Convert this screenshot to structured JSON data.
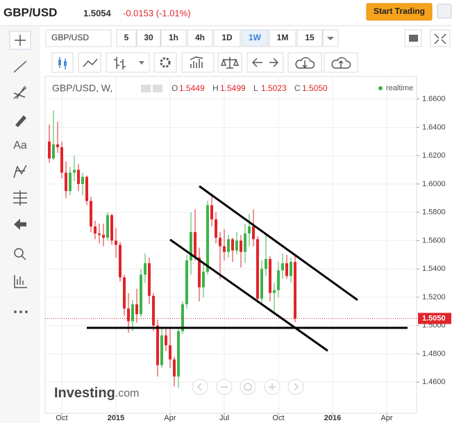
{
  "header": {
    "symbol": "GBP/USD",
    "price": "1.5054",
    "change": "-0.0153 (-1.01%)",
    "button": "Start Trading"
  },
  "toolbar": {
    "symbol_input": "GBP/USD",
    "intervals": [
      "5",
      "30",
      "1h",
      "4h",
      "1D",
      "1W",
      "1M",
      "15"
    ],
    "active_interval": "1W",
    "text_tool": "Aa"
  },
  "chart_data": {
    "type": "candlestick",
    "title": "GBP/USD, W,",
    "ohlc_legend": [
      {
        "key": "O",
        "value": "1.5449"
      },
      {
        "key": "H",
        "value": "1.5499"
      },
      {
        "key": "L",
        "value": "1.5023"
      },
      {
        "key": "C",
        "value": "1.5050"
      }
    ],
    "status": "realtime",
    "watermark": [
      "Investing",
      ".com"
    ],
    "up_color": "#3cb44a",
    "down_color": "#e0252b",
    "grid": true,
    "x": [
      1,
      2,
      3,
      4,
      5,
      6,
      7,
      8,
      9,
      10,
      11,
      12,
      13,
      14,
      15,
      16,
      17,
      18,
      19,
      20,
      21,
      22,
      23,
      24,
      25,
      26,
      27,
      28,
      29,
      30,
      31,
      32,
      33,
      34,
      35,
      36,
      37,
      38,
      39,
      40,
      41,
      42,
      43,
      44,
      45,
      46,
      47,
      48,
      49,
      50,
      51,
      52,
      53,
      54,
      55,
      56,
      57,
      58,
      59,
      60
    ],
    "open": [
      1.63,
      1.618,
      1.628,
      1.626,
      1.608,
      1.595,
      1.608,
      1.61,
      1.6,
      1.605,
      1.588,
      1.57,
      1.565,
      1.564,
      1.562,
      1.578,
      1.56,
      1.557,
      1.534,
      1.512,
      1.503,
      1.515,
      1.508,
      1.536,
      1.544,
      1.521,
      1.5,
      1.472,
      1.493,
      1.486,
      1.476,
      1.464,
      1.496,
      1.515,
      1.546,
      1.566,
      1.548,
      1.527,
      1.538,
      1.585,
      1.575,
      1.562,
      1.556,
      1.552,
      1.561,
      1.553,
      1.56,
      1.552,
      1.565,
      1.57,
      1.561,
      1.519,
      1.54,
      1.547,
      1.523,
      1.525,
      1.539,
      1.544,
      1.535,
      1.5449
    ],
    "high": [
      1.642,
      1.652,
      1.644,
      1.63,
      1.616,
      1.612,
      1.62,
      1.614,
      1.608,
      1.606,
      1.591,
      1.574,
      1.572,
      1.572,
      1.58,
      1.579,
      1.569,
      1.559,
      1.536,
      1.523,
      1.518,
      1.526,
      1.54,
      1.551,
      1.548,
      1.523,
      1.504,
      1.498,
      1.499,
      1.499,
      1.478,
      1.498,
      1.517,
      1.55,
      1.58,
      1.582,
      1.555,
      1.544,
      1.588,
      1.593,
      1.58,
      1.566,
      1.568,
      1.564,
      1.562,
      1.566,
      1.564,
      1.572,
      1.579,
      1.582,
      1.563,
      1.546,
      1.565,
      1.549,
      1.53,
      1.545,
      1.551,
      1.55,
      1.548,
      1.5499
    ],
    "low": [
      1.615,
      1.617,
      1.622,
      1.604,
      1.59,
      1.592,
      1.602,
      1.595,
      1.592,
      1.585,
      1.566,
      1.561,
      1.558,
      1.556,
      1.56,
      1.557,
      1.548,
      1.531,
      1.507,
      1.495,
      1.496,
      1.502,
      1.506,
      1.53,
      1.515,
      1.496,
      1.464,
      1.47,
      1.482,
      1.47,
      1.457,
      1.456,
      1.494,
      1.512,
      1.536,
      1.546,
      1.517,
      1.52,
      1.536,
      1.57,
      1.558,
      1.533,
      1.546,
      1.548,
      1.545,
      1.55,
      1.541,
      1.544,
      1.556,
      1.556,
      1.516,
      1.514,
      1.535,
      1.517,
      1.51,
      1.52,
      1.533,
      1.533,
      1.53,
      1.5023
    ],
    "close": [
      1.618,
      1.628,
      1.626,
      1.608,
      1.595,
      1.608,
      1.61,
      1.6,
      1.605,
      1.588,
      1.57,
      1.565,
      1.564,
      1.562,
      1.578,
      1.56,
      1.557,
      1.534,
      1.512,
      1.503,
      1.515,
      1.508,
      1.536,
      1.544,
      1.521,
      1.5,
      1.472,
      1.493,
      1.486,
      1.476,
      1.464,
      1.496,
      1.515,
      1.546,
      1.566,
      1.548,
      1.527,
      1.538,
      1.585,
      1.575,
      1.562,
      1.556,
      1.552,
      1.561,
      1.553,
      1.56,
      1.552,
      1.565,
      1.57,
      1.561,
      1.519,
      1.54,
      1.547,
      1.523,
      1.525,
      1.539,
      1.544,
      1.535,
      1.545,
      1.505
    ],
    "price_line": {
      "value": 1.505,
      "label": "1.5050"
    },
    "xlim": [
      0,
      89.17
    ],
    "xticks": [
      {
        "value": 4,
        "label": "Oct"
      },
      {
        "value": 17,
        "label": "2015"
      },
      {
        "value": 30,
        "label": "Apr"
      },
      {
        "value": 43,
        "label": "Jul"
      },
      {
        "value": 56,
        "label": "Oct"
      },
      {
        "value": 69,
        "label": "2016"
      },
      {
        "value": 82,
        "label": "Apr"
      }
    ],
    "ylim": [
      1.438,
      1.676
    ],
    "yticks": [
      {
        "value": 1.66,
        "label": "1.6600"
      },
      {
        "value": 1.64,
        "label": "1.6400"
      },
      {
        "value": 1.62,
        "label": "1.6200"
      },
      {
        "value": 1.6,
        "label": "1.6000"
      },
      {
        "value": 1.58,
        "label": "1.5800"
      },
      {
        "value": 1.56,
        "label": "1.5600"
      },
      {
        "value": 1.54,
        "label": "1.5400"
      },
      {
        "value": 1.52,
        "label": "1.5200"
      },
      {
        "value": 1.5,
        "label": "1.5000"
      },
      {
        "value": 1.48,
        "label": "1.4800"
      },
      {
        "value": 1.46,
        "label": "1.4600"
      }
    ]
  }
}
